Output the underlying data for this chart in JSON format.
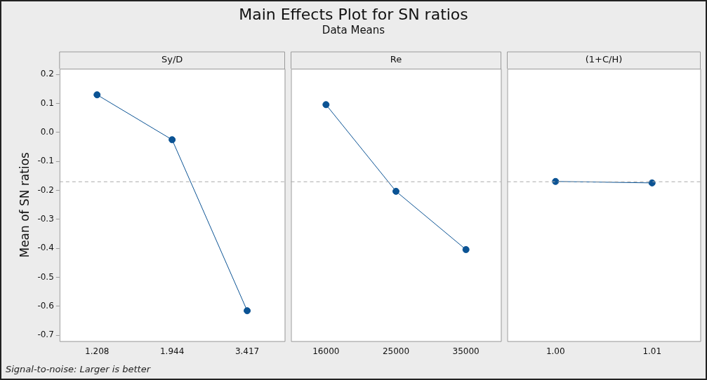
{
  "chart_data": [
    {
      "type": "other",
      "title": "Main Effects Plot for SN ratios",
      "subtitle": "Data Means"
    },
    {
      "type": "line",
      "xlabel": "Sy/D",
      "ylabel": "Mean of SN ratios",
      "categories": [
        "1.208",
        "1.944",
        "3.417"
      ],
      "series": [
        {
          "color": "#0b5394",
          "values": [
            0.13,
            -0.025,
            -0.615
          ]
        }
      ],
      "ylim": [
        -0.72,
        0.22
      ],
      "yticks": [
        {
          "value": -0.7,
          "label": "-0.7"
        },
        {
          "value": -0.6,
          "label": "-0.6"
        },
        {
          "value": -0.5,
          "label": "-0.5"
        },
        {
          "value": -0.4,
          "label": "-0.4"
        },
        {
          "value": -0.3,
          "label": "-0.3"
        },
        {
          "value": -0.2,
          "label": "-0.2"
        },
        {
          "value": -0.1,
          "label": "-0.1"
        },
        {
          "value": 0,
          "label": "0.0"
        },
        {
          "value": 0.1,
          "label": "0.1"
        },
        {
          "value": 0.2,
          "label": "0.2"
        }
      ],
      "ref_lines": [
        {
          "axis": "y",
          "value": -0.17,
          "color": "#aaaaaa",
          "line_style": "dashed"
        }
      ],
      "marker": "circle",
      "line_style": "solid",
      "grid": false,
      "annotations": [
        "Signal-to-noise: Larger is better"
      ]
    },
    {
      "type": "line",
      "xlabel": "Re",
      "categories": [
        "16000",
        "25000",
        "35000"
      ],
      "series": [
        {
          "color": "#0b5394",
          "values": [
            0.096,
            -0.203,
            -0.404
          ]
        }
      ],
      "ylim": [
        -0.72,
        0.22
      ],
      "tick_labels": "x",
      "ref_lines": [
        {
          "axis": "y",
          "value": -0.17,
          "color": "#aaaaaa",
          "line_style": "dashed"
        }
      ],
      "marker": "circle",
      "line_style": "solid",
      "grid": false
    },
    {
      "type": "line",
      "xlabel": "(1+C/H)",
      "categories": [
        "1.00",
        "1.01"
      ],
      "series": [
        {
          "color": "#0b5394",
          "values": [
            -0.169,
            -0.174
          ]
        }
      ],
      "ylim": [
        -0.72,
        0.22
      ],
      "tick_labels": "x",
      "ref_lines": [
        {
          "axis": "y",
          "value": -0.17,
          "color": "#aaaaaa",
          "line_style": "dashed"
        }
      ],
      "marker": "circle",
      "line_style": "solid",
      "grid": false
    }
  ]
}
